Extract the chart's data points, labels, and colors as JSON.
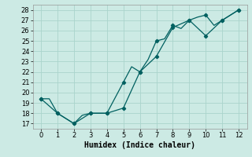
{
  "xlabel": "Humidex (Indice chaleur)",
  "xlim": [
    -0.5,
    12.5
  ],
  "ylim": [
    16.5,
    28.5
  ],
  "yticks": [
    17,
    18,
    19,
    20,
    21,
    22,
    23,
    24,
    25,
    26,
    27,
    28
  ],
  "xticks": [
    0,
    1,
    2,
    3,
    4,
    5,
    6,
    7,
    8,
    9,
    10,
    11,
    12
  ],
  "bg_color": "#cceae4",
  "grid_color": "#aad4cc",
  "line_color": "#006060",
  "line1_x": [
    0,
    0.5,
    1,
    1.5,
    2,
    2.5,
    3,
    3.5,
    4,
    4.5,
    5,
    5.5,
    6,
    6.5,
    7,
    7.5,
    8,
    8.5,
    9,
    9.5,
    10,
    10.5,
    11,
    11.5,
    12
  ],
  "line1_y": [
    19.4,
    19.4,
    18.0,
    17.5,
    17.0,
    17.8,
    18.0,
    18.0,
    18.0,
    19.5,
    21.0,
    22.5,
    22.0,
    23.2,
    25.0,
    25.2,
    26.5,
    26.2,
    27.0,
    27.3,
    27.5,
    26.5,
    27.0,
    27.5,
    28.0
  ],
  "line1_markers_x": [
    0,
    1,
    2,
    3,
    4,
    5,
    6,
    7,
    8,
    9,
    10,
    11,
    12
  ],
  "line1_markers_y": [
    19.4,
    18.0,
    17.0,
    18.0,
    18.0,
    21.0,
    22.0,
    25.0,
    26.5,
    27.0,
    27.5,
    27.0,
    28.0
  ],
  "line2_x": [
    0,
    1,
    2,
    3,
    4,
    5,
    6,
    7,
    8,
    9,
    10,
    11,
    12
  ],
  "line2_y": [
    19.4,
    18.0,
    17.0,
    18.0,
    18.0,
    18.5,
    22.0,
    23.5,
    26.3,
    27.0,
    25.5,
    27.0,
    28.0
  ],
  "line2_markers_x": [
    0,
    1,
    2,
    3,
    4,
    5,
    6,
    7,
    8,
    9,
    10,
    11,
    12
  ],
  "line2_markers_y": [
    19.4,
    18.0,
    17.0,
    18.0,
    18.0,
    18.5,
    22.0,
    23.5,
    26.3,
    27.0,
    25.5,
    27.0,
    28.0
  ],
  "tick_fontsize": 6,
  "xlabel_fontsize": 7
}
